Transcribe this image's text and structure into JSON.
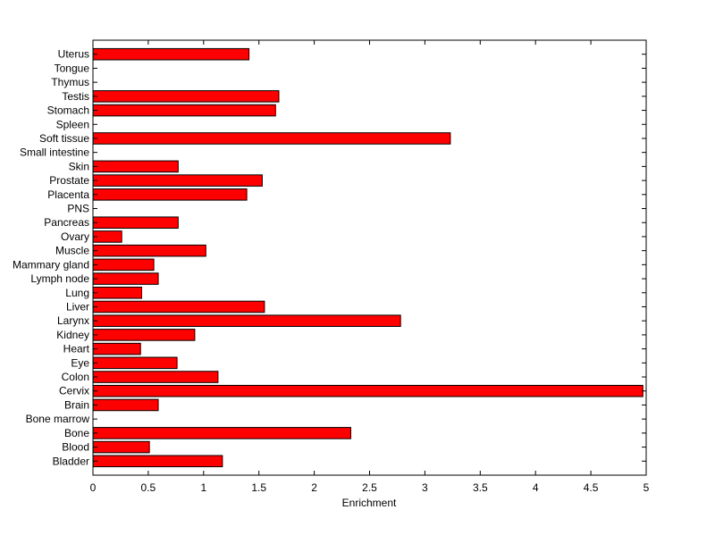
{
  "chart_data": {
    "type": "bar",
    "orientation": "horizontal",
    "title": "",
    "xlabel": "Enrichment",
    "ylabel": "",
    "xlim": [
      0,
      5
    ],
    "xticks": [
      "0",
      "0.5",
      "1",
      "1.5",
      "2",
      "2.5",
      "3",
      "3.5",
      "4",
      "4.5",
      "5"
    ],
    "categories": [
      "Uterus",
      "Tongue",
      "Thymus",
      "Testis",
      "Stomach",
      "Spleen",
      "Soft tissue",
      "Small intestine",
      "Skin",
      "Prostate",
      "Placenta",
      "PNS",
      "Pancreas",
      "Ovary",
      "Muscle",
      "Mammary gland",
      "Lymph node",
      "Lung",
      "Liver",
      "Larynx",
      "Kidney",
      "Heart",
      "Eye",
      "Colon",
      "Cervix",
      "Brain",
      "Bone marrow",
      "Bone",
      "Blood",
      "Bladder"
    ],
    "values": [
      1.41,
      0,
      0,
      1.68,
      1.65,
      0,
      3.23,
      0,
      0.77,
      1.53,
      1.39,
      0,
      0.77,
      0.26,
      1.02,
      0.55,
      0.59,
      0.44,
      1.55,
      2.78,
      0.92,
      0.43,
      0.76,
      1.13,
      4.97,
      0.59,
      0,
      2.33,
      0.51,
      1.17
    ],
    "bar_color": "#ff0000",
    "grid": false,
    "legend": "none"
  }
}
